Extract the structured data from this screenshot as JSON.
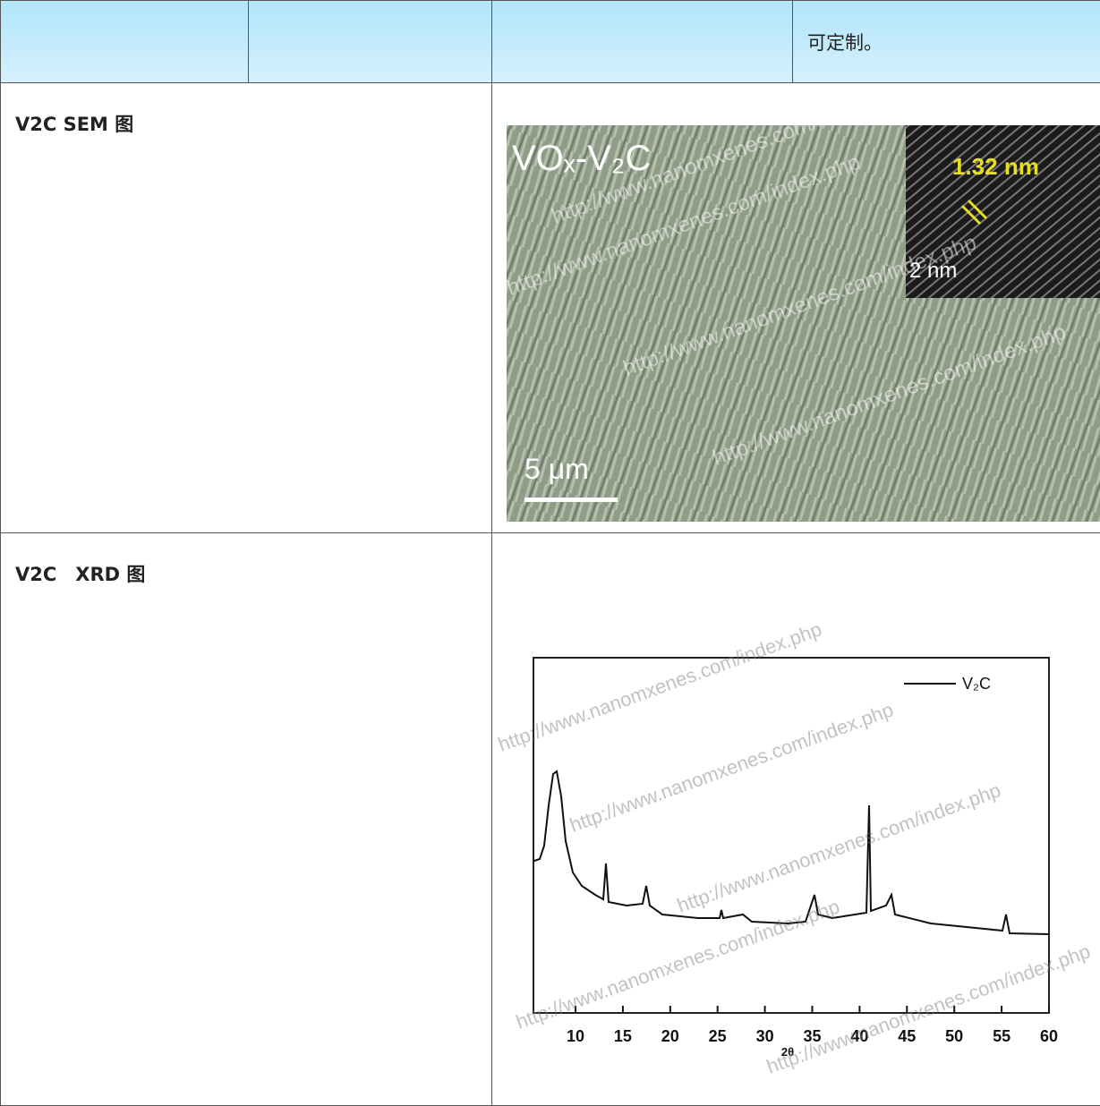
{
  "table": {
    "header": [
      "",
      "",
      "",
      "可定制。"
    ],
    "rows": [
      {
        "label": "V2C SEM 图",
        "image": {
          "title": "VOₓ-V₂C",
          "scale_bar": "5 μm",
          "inset_spacing": "1.32 nm",
          "inset_scale": "2 nm",
          "watermark": "http://www.nanomxenes.com/index.php"
        }
      },
      {
        "label": "V2C　XRD 图",
        "chart": {
          "legend": "V₂C",
          "xlabel": "2θ",
          "xticks": [
            10,
            15,
            20,
            25,
            30,
            35,
            40,
            45,
            50,
            55,
            60
          ],
          "watermark": "http://www.nanomxenes.com/index.php"
        }
      }
    ]
  }
}
